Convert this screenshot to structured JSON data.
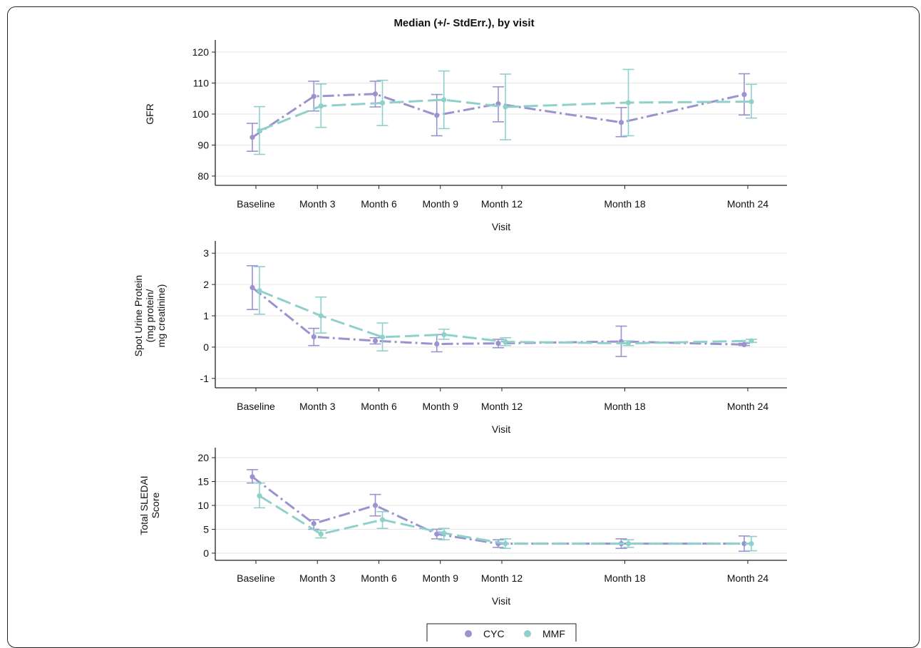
{
  "title": "Median (+/- StdErr.), by visit",
  "colors": {
    "CYC": "#9a93cf",
    "MMF": "#8fd0cb",
    "axis": "#222222",
    "grid": "#e6e6e6"
  },
  "legend": {
    "placement": "bottom-center",
    "items": [
      {
        "name": "CYC",
        "color": "#9a93cf"
      },
      {
        "name": "MMF",
        "color": "#8fd0cb"
      }
    ]
  },
  "chart_data": [
    {
      "type": "line",
      "title": "Median (+/- StdErr.), by visit",
      "xlabel": "Visit",
      "ylabel": "GFR",
      "categories": [
        "Baseline",
        "Month 3",
        "Month 6",
        "Month 9",
        "Month 12",
        "Month 18",
        "Month 24"
      ],
      "x": [
        0,
        3,
        6,
        9,
        12,
        18,
        24
      ],
      "ylim": [
        77,
        123
      ],
      "yticks": [
        80,
        90,
        100,
        110,
        120
      ],
      "grid": true,
      "series": [
        {
          "name": "CYC",
          "values": [
            92.5,
            105.7,
            106.5,
            99.6,
            103.3,
            97.3,
            106.3
          ],
          "err_low": [
            88,
            101,
            102.3,
            93,
            97.5,
            92.7,
            99.7
          ],
          "err_high": [
            97,
            110.6,
            110.6,
            106.3,
            108.8,
            102.1,
            113
          ]
        },
        {
          "name": "MMF",
          "values": [
            94.7,
            102.6,
            103.6,
            104.6,
            102.3,
            103.7,
            104
          ],
          "err_low": [
            87,
            95.7,
            96.3,
            95.3,
            91.7,
            93,
            98.7
          ],
          "err_high": [
            102.4,
            109.7,
            110.9,
            113.9,
            112.9,
            114.4,
            109.6
          ]
        }
      ]
    },
    {
      "type": "line",
      "xlabel": "Visit",
      "ylabel": [
        "Spot Urine Protein",
        "(mg protein/",
        "mg creatinine)"
      ],
      "categories": [
        "Baseline",
        "Month 3",
        "Month 6",
        "Month 9",
        "Month 12",
        "Month 18",
        "Month 24"
      ],
      "x": [
        0,
        3,
        6,
        9,
        12,
        18,
        24
      ],
      "ylim": [
        -1.3,
        3.3
      ],
      "yticks": [
        -1,
        0,
        1,
        2,
        3
      ],
      "grid": true,
      "series": [
        {
          "name": "CYC",
          "values": [
            1.9,
            0.33,
            0.2,
            0.1,
            0.12,
            0.18,
            0.08
          ],
          "err_low": [
            1.2,
            0.05,
            0.1,
            -0.15,
            -0.02,
            -0.3,
            0.05
          ],
          "err_high": [
            2.6,
            0.6,
            0.3,
            0.4,
            0.25,
            0.67,
            0.12
          ]
        },
        {
          "name": "MMF",
          "values": [
            1.8,
            1.0,
            0.32,
            0.4,
            0.17,
            0.12,
            0.2
          ],
          "err_low": [
            1.05,
            0.45,
            -0.12,
            0.25,
            0.05,
            0.05,
            0.15
          ],
          "err_high": [
            2.57,
            1.6,
            0.77,
            0.57,
            0.3,
            0.2,
            0.25
          ]
        }
      ]
    },
    {
      "type": "line",
      "xlabel": "Visit",
      "ylabel": [
        "Total SLEDAI",
        "Score"
      ],
      "categories": [
        "Baseline",
        "Month 3",
        "Month 6",
        "Month 9",
        "Month 12",
        "Month 18",
        "Month 24"
      ],
      "x": [
        0,
        3,
        6,
        9,
        12,
        18,
        24
      ],
      "ylim": [
        -1.5,
        21.5
      ],
      "yticks": [
        0,
        5,
        10,
        15,
        20
      ],
      "grid": true,
      "series": [
        {
          "name": "CYC",
          "values": [
            16,
            6.2,
            10,
            4,
            2,
            2,
            2
          ],
          "err_low": [
            14.7,
            5,
            7.8,
            3,
            1.2,
            1,
            0.4
          ],
          "err_high": [
            17.5,
            7,
            12.3,
            5,
            2.8,
            3,
            3.6
          ]
        },
        {
          "name": "MMF",
          "values": [
            12,
            4,
            7,
            4.2,
            2,
            2,
            2
          ],
          "err_low": [
            9.5,
            3.2,
            5.2,
            2.8,
            1,
            1.2,
            0.5
          ],
          "err_high": [
            14.7,
            4.8,
            8.7,
            5.2,
            3,
            2.8,
            3.5
          ]
        }
      ]
    }
  ]
}
